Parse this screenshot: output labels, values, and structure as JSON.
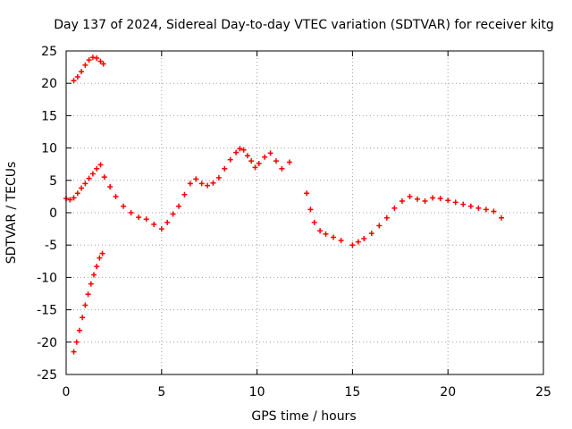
{
  "chart_data": {
    "type": "scatter",
    "title": "Day 137 of 2024, Sidereal Day-to-day VTEC variation (SDTVAR) for receiver kitg",
    "xlabel": "GPS time / hours",
    "ylabel": "SDTVAR / TECUs",
    "xlim": [
      0,
      25
    ],
    "ylim": [
      -25,
      25
    ],
    "xticks": [
      0,
      5,
      10,
      15,
      20,
      25
    ],
    "yticks": [
      -25,
      -20,
      -15,
      -10,
      -5,
      0,
      5,
      10,
      15,
      20,
      25
    ],
    "grid": true,
    "marker": "+",
    "color": "#ff0000",
    "series": [
      {
        "name": "arc-top",
        "x": [
          0.4,
          0.6,
          0.8,
          1.0,
          1.2,
          1.4,
          1.6,
          1.8,
          1.95
        ],
        "y": [
          20.4,
          21.0,
          21.8,
          22.8,
          23.6,
          24.0,
          23.9,
          23.4,
          23.0
        ]
      },
      {
        "name": "arc-bottom",
        "x": [
          0.4,
          0.55,
          0.7,
          0.85,
          1.0,
          1.15,
          1.3,
          1.45,
          1.6,
          1.75,
          1.9
        ],
        "y": [
          -21.5,
          -20.0,
          -18.2,
          -16.2,
          -14.3,
          -12.6,
          -11.0,
          -9.6,
          -8.3,
          -7.0,
          -6.3
        ]
      },
      {
        "name": "main",
        "x": [
          0.0,
          0.2,
          0.4,
          0.6,
          0.8,
          1.0,
          1.2,
          1.4,
          1.6,
          1.8,
          2.0,
          2.3,
          2.6,
          3.0,
          3.4,
          3.8,
          4.2,
          4.6,
          5.0,
          5.3,
          5.6,
          5.9,
          6.2,
          6.5,
          6.8,
          7.1,
          7.4,
          7.7,
          8.0,
          8.3,
          8.6,
          8.9,
          9.1,
          9.3,
          9.5,
          9.7,
          9.9,
          10.1,
          10.4,
          10.7,
          11.0,
          11.3,
          11.7,
          12.6,
          12.8,
          13.0,
          13.3,
          13.6,
          14.0,
          14.4,
          15.0,
          15.3,
          15.6,
          16.0,
          16.4,
          16.8,
          17.2,
          17.6,
          18.0,
          18.4,
          18.8,
          19.2,
          19.6,
          20.0,
          20.4,
          20.8,
          21.2,
          21.6,
          22.0,
          22.4,
          22.8
        ],
        "y": [
          2.2,
          2.0,
          2.3,
          3.0,
          3.8,
          4.5,
          5.3,
          6.0,
          6.8,
          7.4,
          5.5,
          4.0,
          2.5,
          1.0,
          0.0,
          -0.7,
          -1.0,
          -1.8,
          -2.5,
          -1.5,
          -0.2,
          1.0,
          2.8,
          4.5,
          5.2,
          4.5,
          4.2,
          4.6,
          5.4,
          6.8,
          8.2,
          9.3,
          9.9,
          9.7,
          8.8,
          8.0,
          7.0,
          7.6,
          8.6,
          9.2,
          8.0,
          6.8,
          7.8,
          3.0,
          0.5,
          -1.5,
          -2.8,
          -3.3,
          -3.8,
          -4.3,
          -5.0,
          -4.5,
          -4.0,
          -3.2,
          -2.0,
          -0.8,
          0.7,
          1.8,
          2.5,
          2.1,
          1.8,
          2.3,
          2.2,
          1.9,
          1.6,
          1.3,
          1.0,
          0.7,
          0.5,
          0.2,
          -0.8
        ]
      }
    ]
  }
}
